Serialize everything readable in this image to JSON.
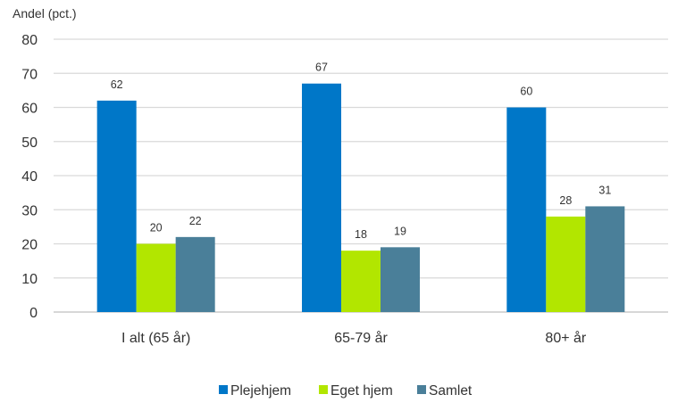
{
  "chart_data": {
    "type": "bar",
    "ylabel": "Andel (pct.)",
    "xlabel": "",
    "ylim": [
      0,
      80
    ],
    "yticks": [
      0,
      10,
      20,
      30,
      40,
      50,
      60,
      70,
      80
    ],
    "grid": true,
    "legend_placement": "bottom",
    "categories": [
      "I alt (65 år)",
      "65-79 år",
      "80+ år"
    ],
    "series": [
      {
        "name": "Plejehjem",
        "values": [
          62,
          67,
          60
        ],
        "color": "#0077c8"
      },
      {
        "name": "Eget hjem",
        "values": [
          20,
          18,
          28
        ],
        "color": "#b2e600"
      },
      {
        "name": "Samlet",
        "values": [
          22,
          19,
          31
        ],
        "color": "#4a7f99"
      }
    ]
  }
}
